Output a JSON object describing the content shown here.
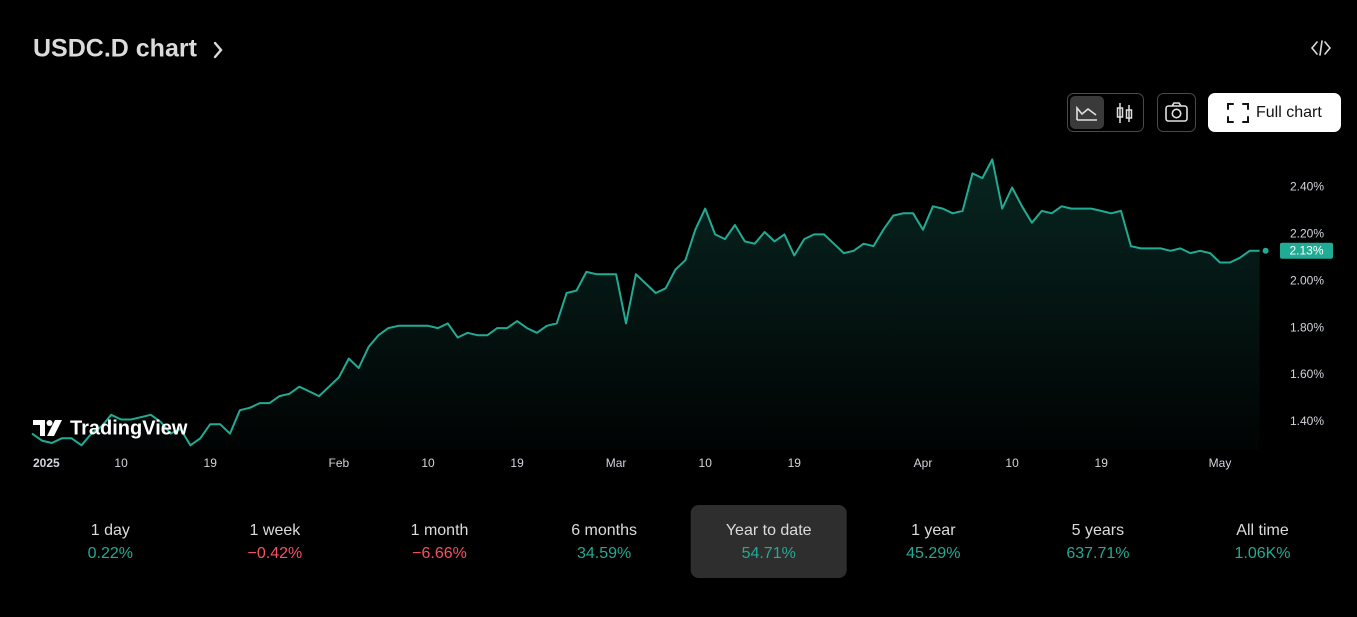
{
  "header": {
    "title": "USDC.D chart"
  },
  "toolbar": {
    "full_chart": "Full chart"
  },
  "watermark": "TradingView",
  "chart_data": {
    "type": "area",
    "color": "#22ab94",
    "categories": [
      "2025",
      null,
      null,
      null,
      null,
      null,
      null,
      null,
      null,
      "10",
      null,
      null,
      null,
      null,
      null,
      null,
      null,
      null,
      "19",
      null,
      null,
      null,
      null,
      null,
      null,
      null,
      null,
      null,
      null,
      null,
      null,
      "Feb",
      null,
      null,
      null,
      null,
      null,
      null,
      null,
      null,
      "10",
      null,
      null,
      null,
      null,
      null,
      null,
      null,
      null,
      "19",
      null,
      null,
      null,
      null,
      null,
      null,
      null,
      null,
      null,
      "Mar",
      null,
      null,
      null,
      null,
      null,
      null,
      null,
      null,
      "10",
      null,
      null,
      null,
      null,
      null,
      null,
      null,
      null,
      "19",
      null,
      null,
      null,
      null,
      null,
      null,
      null,
      null,
      null,
      null,
      null,
      null,
      "Apr",
      null,
      null,
      null,
      null,
      null,
      null,
      null,
      null,
      "10",
      null,
      null,
      null,
      null,
      null,
      null,
      null,
      null,
      "19",
      null,
      null,
      null,
      null,
      null,
      null,
      null,
      null,
      null,
      null,
      null,
      "May",
      null,
      null,
      null,
      null
    ],
    "values": [
      1.35,
      1.32,
      1.31,
      1.33,
      1.33,
      1.3,
      1.35,
      1.38,
      1.43,
      1.41,
      1.41,
      1.42,
      1.43,
      1.4,
      1.35,
      1.37,
      1.3,
      1.33,
      1.39,
      1.39,
      1.35,
      1.45,
      1.46,
      1.48,
      1.48,
      1.51,
      1.52,
      1.55,
      1.53,
      1.51,
      1.55,
      1.59,
      1.67,
      1.63,
      1.72,
      1.77,
      1.8,
      1.81,
      1.81,
      1.81,
      1.81,
      1.8,
      1.82,
      1.76,
      1.78,
      1.77,
      1.77,
      1.8,
      1.8,
      1.83,
      1.8,
      1.78,
      1.81,
      1.82,
      1.95,
      1.96,
      2.04,
      2.03,
      2.03,
      2.03,
      1.82,
      2.03,
      1.99,
      1.95,
      1.97,
      2.05,
      2.09,
      2.22,
      2.31,
      2.2,
      2.18,
      2.24,
      2.17,
      2.16,
      2.21,
      2.17,
      2.2,
      2.11,
      2.18,
      2.2,
      2.2,
      2.16,
      2.12,
      2.13,
      2.16,
      2.15,
      2.22,
      2.28,
      2.29,
      2.29,
      2.22,
      2.32,
      2.31,
      2.29,
      2.3,
      2.46,
      2.44,
      2.52,
      2.31,
      2.4,
      2.32,
      2.25,
      2.3,
      2.29,
      2.32,
      2.31,
      2.31,
      2.31,
      2.3,
      2.29,
      2.3,
      2.15,
      2.14,
      2.14,
      2.14,
      2.13,
      2.14,
      2.12,
      2.13,
      2.12,
      2.08,
      2.08,
      2.1,
      2.13,
      2.13
    ],
    "value_labels": [
      null,
      null,
      null,
      null,
      null,
      null,
      null,
      null,
      null,
      null,
      null,
      null,
      null,
      null,
      null,
      null,
      null,
      null,
      null,
      null,
      null,
      null,
      null,
      null,
      null,
      null,
      null,
      null,
      null,
      null,
      null,
      null,
      null,
      null,
      null,
      null,
      null,
      null,
      null,
      null,
      null,
      null,
      null,
      null,
      null,
      null,
      null,
      null,
      null,
      null,
      null,
      null,
      null,
      null,
      null,
      null,
      null,
      null,
      null,
      null,
      null,
      null,
      null,
      null,
      null,
      null,
      null,
      null,
      null,
      null,
      null,
      null,
      null,
      null,
      null,
      null,
      null,
      null,
      null,
      null,
      null,
      null,
      null,
      null,
      null,
      null,
      null,
      null,
      null,
      null,
      null,
      null,
      null,
      null,
      null,
      null,
      null,
      null,
      null,
      null,
      null,
      null,
      null,
      null,
      null,
      null,
      null,
      null,
      null,
      null,
      null,
      null,
      null,
      null,
      null,
      null,
      null,
      null,
      null,
      null,
      null,
      null,
      null,
      null,
      "2.13%"
    ],
    "ylim": [
      1.28,
      2.56
    ],
    "yticks": [
      {
        "value": 1.4,
        "label": "1.40%"
      },
      {
        "value": 1.6,
        "label": "1.60%"
      },
      {
        "value": 1.8,
        "label": "1.80%"
      },
      {
        "value": 2.0,
        "label": "2.00%"
      },
      {
        "value": 2.2,
        "label": "2.20%"
      },
      {
        "value": 2.4,
        "label": "2.40%"
      }
    ],
    "grid": false
  },
  "periods": [
    {
      "label": "1 day",
      "change": "0.22%",
      "color": "#22ab94"
    },
    {
      "label": "1 week",
      "change": "−0.42%",
      "color": "#f7525f"
    },
    {
      "label": "1 month",
      "change": "−6.66%",
      "color": "#f7525f"
    },
    {
      "label": "6 months",
      "change": "34.59%",
      "color": "#22ab94"
    },
    {
      "label": "Year to date",
      "change": "54.71%",
      "color": "#22ab94"
    },
    {
      "label": "1 year",
      "change": "45.29%",
      "color": "#22ab94"
    },
    {
      "label": "5 years",
      "change": "637.71%",
      "color": "#22ab94"
    },
    {
      "label": "All time",
      "change": "1.06K%",
      "color": "#22ab94"
    }
  ],
  "active_period": 4
}
